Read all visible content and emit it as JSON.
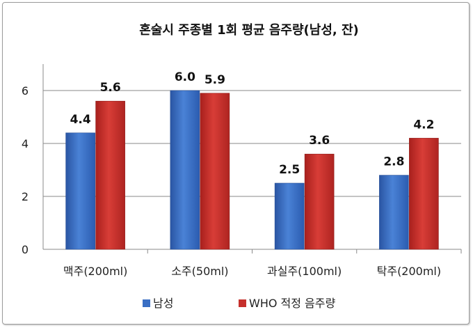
{
  "chart_data": {
    "type": "bar",
    "title": "혼술시 주종별 1회 평균 음주량(남성, 잔)",
    "xlabel": "",
    "ylabel": "",
    "categories": [
      "맥주(200ml)",
      "소주(50ml)",
      "과실주(100ml)",
      "탁주(200ml)"
    ],
    "ylim": [
      0,
      7
    ],
    "yticks": [
      0,
      2,
      4,
      6
    ],
    "grid": true,
    "legend_position": "bottom",
    "series": [
      {
        "name": "남성",
        "color": "#3a6fc4",
        "values": [
          4.4,
          6.0,
          2.5,
          2.8
        ],
        "labels": [
          "4.4",
          "6.0",
          "2.5",
          "2.8"
        ]
      },
      {
        "name": "WHO 적정 음주량",
        "color": "#c6302c",
        "values": [
          5.6,
          5.9,
          3.6,
          4.2
        ],
        "labels": [
          "5.6",
          "5.9",
          "3.6",
          "4.2"
        ]
      }
    ]
  }
}
